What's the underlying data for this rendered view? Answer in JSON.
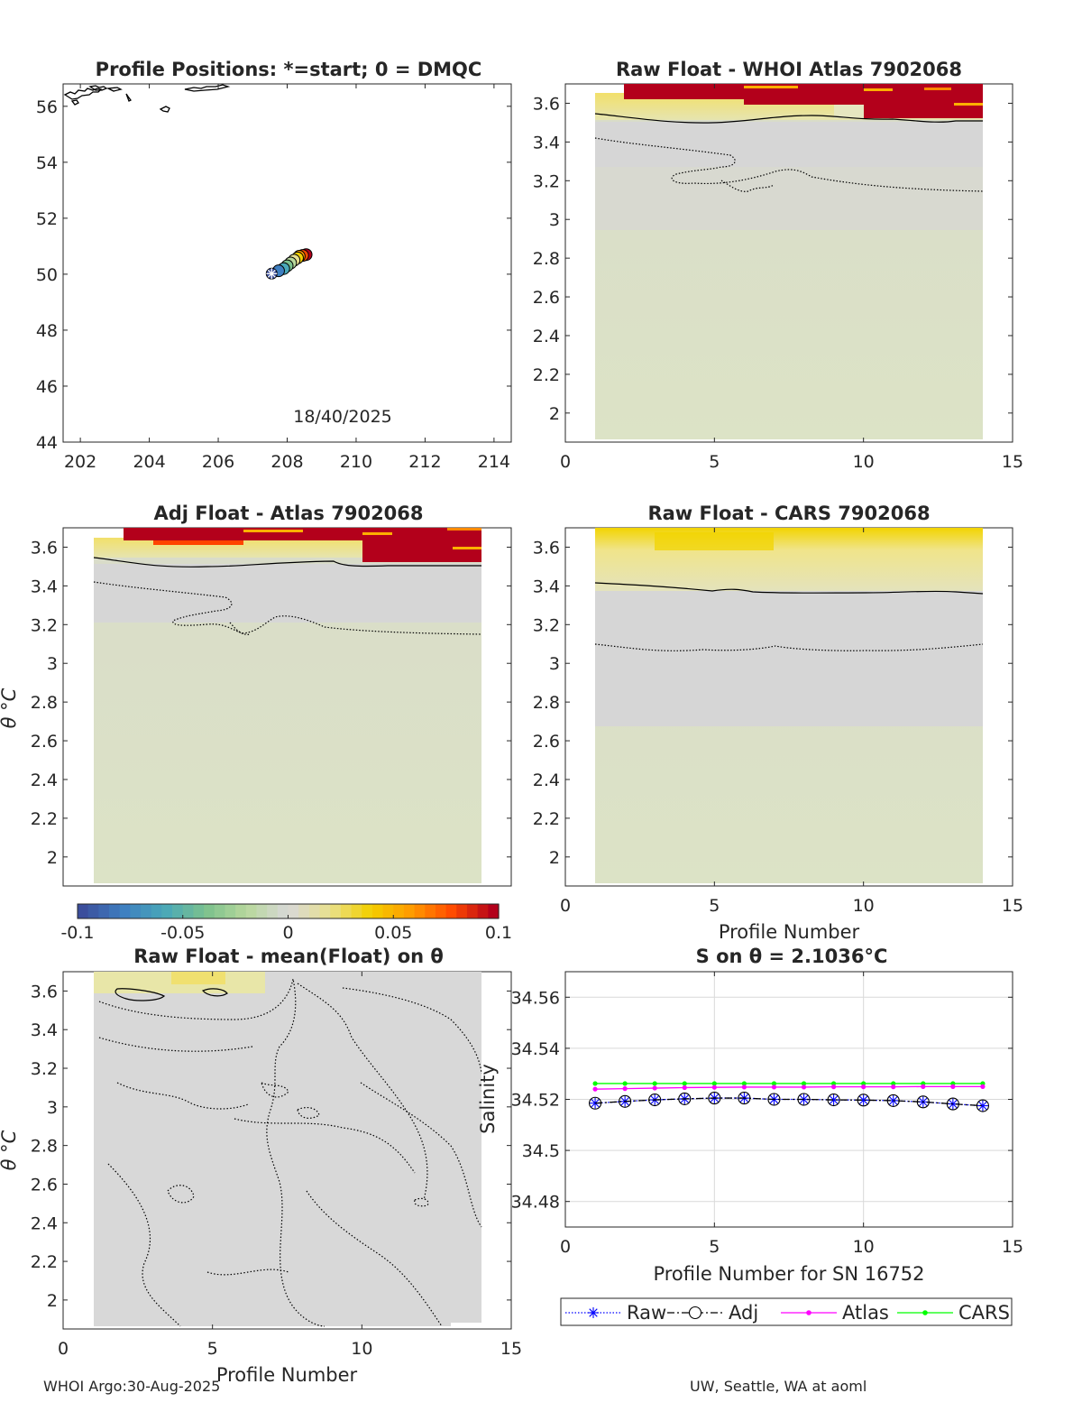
{
  "footer": {
    "left": "WHOI Argo:30-Aug-2025",
    "right": "UW, Seattle, WA at aoml"
  },
  "colors": {
    "axis": "#262626",
    "grid": "#d9d9d9",
    "field_neutral": "#d8d8d8",
    "field_pale": "#dde3c8",
    "field_red": "#b3001b",
    "field_orange": "#ffb000",
    "field_yellow": "#f2e28a",
    "raw": "#0000ff",
    "adj": "#000000",
    "atlas": "#ff00ff",
    "cars": "#00ff00",
    "colormap": [
      "#3b4e9c",
      "#3e7fc1",
      "#49a8b8",
      "#7cc18d",
      "#b8d89c",
      "#d8d8d8",
      "#e8e090",
      "#f3d000",
      "#ff9a00",
      "#ff4a00",
      "#b3001b"
    ]
  },
  "chart_data": [
    {
      "id": "map",
      "type": "scatter",
      "title": "Profile Positions: *=start; 0 = DMQC",
      "annotation": "18/40/2025",
      "xlabel": "",
      "ylabel": "",
      "xlim": [
        201.5,
        214.5
      ],
      "ylim": [
        44,
        56.8
      ],
      "xticks": [
        202,
        204,
        206,
        208,
        210,
        212,
        214
      ],
      "yticks": [
        44,
        46,
        48,
        50,
        52,
        54,
        56
      ],
      "x": [
        207.55,
        207.75,
        207.9,
        208.0,
        208.1,
        208.2,
        208.3,
        208.35,
        208.45,
        208.55
      ],
      "y": [
        50.02,
        50.12,
        50.2,
        50.3,
        50.4,
        50.5,
        50.58,
        50.64,
        50.67,
        50.7
      ],
      "grid": false
    },
    {
      "id": "raw_atlas",
      "type": "heatmap",
      "title": "Raw Float - WHOI Atlas  7902068",
      "xlabel": "",
      "ylabel": "",
      "xlim": [
        0,
        15
      ],
      "ylim": [
        1.85,
        3.7
      ],
      "xticks": [
        0,
        5,
        10,
        15
      ],
      "yticks": [
        2,
        2.2,
        2.4,
        2.6,
        2.8,
        3,
        3.2,
        3.4,
        3.6
      ],
      "field_x": [
        1,
        14
      ],
      "grid": false
    },
    {
      "id": "adj_atlas",
      "type": "heatmap",
      "title": "Adj Float - Atlas  7902068",
      "xlabel": "",
      "ylabel": "θ °C",
      "xlim": [
        0,
        15
      ],
      "ylim": [
        1.85,
        3.7
      ],
      "xticks": [],
      "yticks": [
        2,
        2.2,
        2.4,
        2.6,
        2.8,
        3,
        3.2,
        3.4,
        3.6
      ],
      "field_x": [
        1,
        14
      ],
      "colorbar": {
        "min": -0.1,
        "max": 0.1,
        "ticks": [
          "-0.1",
          "-0.05",
          "0",
          "0.05",
          "0.1"
        ]
      },
      "grid": false
    },
    {
      "id": "raw_cars",
      "type": "heatmap",
      "title": "Raw Float - CARS  7902068",
      "xlabel": "Profile Number",
      "ylabel": "",
      "xlim": [
        0,
        15
      ],
      "ylim": [
        1.85,
        3.7
      ],
      "xticks": [
        0,
        5,
        10,
        15
      ],
      "yticks": [
        2,
        2.2,
        2.4,
        2.6,
        2.8,
        3,
        3.2,
        3.4,
        3.6
      ],
      "field_x": [
        1,
        14
      ],
      "grid": false
    },
    {
      "id": "raw_mean",
      "type": "heatmap",
      "title": "Raw Float - mean(Float) on θ",
      "xlabel": "Profile Number",
      "ylabel": "θ °C",
      "xlim": [
        0,
        15
      ],
      "ylim": [
        1.85,
        3.7
      ],
      "xticks": [
        0,
        5,
        10,
        15
      ],
      "yticks": [
        2,
        2.2,
        2.4,
        2.6,
        2.8,
        3,
        3.2,
        3.4,
        3.6
      ],
      "field_x": [
        1,
        14
      ],
      "grid": false
    },
    {
      "id": "salinity",
      "type": "line",
      "title": "S on θ = 2.1036°C",
      "xlabel": "Profile Number for SN 16752",
      "ylabel": "Salinity",
      "xlim": [
        0,
        15
      ],
      "ylim": [
        34.47,
        34.57
      ],
      "xticks": [
        0,
        5,
        10,
        15
      ],
      "yticks": [
        34.48,
        34.5,
        34.52,
        34.54,
        34.56
      ],
      "ytick_labels": [
        "34.48",
        "34.5",
        "34.52",
        "34.54",
        "34.56"
      ],
      "x": [
        1,
        2,
        3,
        4,
        5,
        6,
        7,
        8,
        9,
        10,
        11,
        12,
        13,
        14
      ],
      "series": [
        {
          "name": "Raw",
          "values": [
            34.5185,
            34.5192,
            34.5198,
            34.5202,
            34.5205,
            34.5205,
            34.52,
            34.52,
            34.5198,
            34.5197,
            34.5195,
            34.519,
            34.5182,
            34.5175
          ]
        },
        {
          "name": "Adj",
          "values": [
            34.5185,
            34.5192,
            34.5198,
            34.5202,
            34.5205,
            34.5205,
            34.52,
            34.52,
            34.5198,
            34.5197,
            34.5195,
            34.519,
            34.5182,
            34.5175
          ]
        },
        {
          "name": "Atlas",
          "values": [
            34.524,
            34.5242,
            34.5244,
            34.5246,
            34.5247,
            34.5248,
            34.5248,
            34.5248,
            34.5249,
            34.5249,
            34.5249,
            34.525,
            34.525,
            34.525
          ]
        },
        {
          "name": "CARS",
          "values": [
            34.5262,
            34.5262,
            34.5262,
            34.5262,
            34.5262,
            34.5262,
            34.5262,
            34.5262,
            34.5262,
            34.5262,
            34.5262,
            34.5262,
            34.5262,
            34.5262
          ]
        }
      ],
      "grid": true,
      "legend": "bottom"
    }
  ]
}
